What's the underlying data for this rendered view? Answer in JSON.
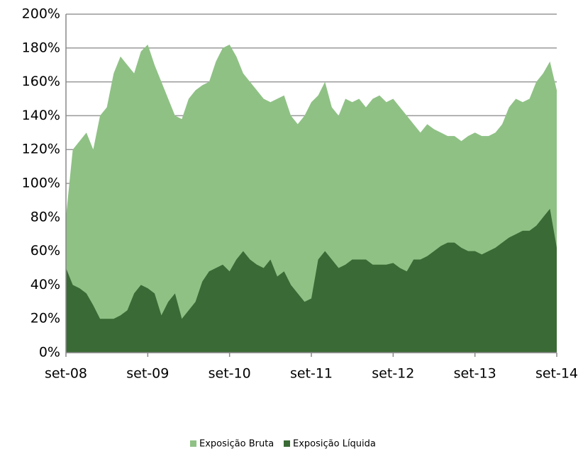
{
  "chart_data": {
    "type": "area",
    "categories": [
      "set-08",
      null,
      null,
      null,
      null,
      null,
      null,
      null,
      null,
      null,
      null,
      null,
      "set-09",
      null,
      null,
      null,
      null,
      null,
      null,
      null,
      null,
      null,
      null,
      null,
      "set-10",
      null,
      null,
      null,
      null,
      null,
      null,
      null,
      null,
      null,
      null,
      null,
      "set-11",
      null,
      null,
      null,
      null,
      null,
      null,
      null,
      null,
      null,
      null,
      null,
      "set-12",
      null,
      null,
      null,
      null,
      null,
      null,
      null,
      null,
      null,
      null,
      null,
      "set-13",
      null,
      null,
      null,
      null,
      null,
      null,
      null,
      null,
      null,
      null,
      null,
      "set-14"
    ],
    "series": [
      {
        "name": "Exposição Bruta",
        "color": "#8fc185",
        "values": [
          80,
          120,
          125,
          130,
          120,
          140,
          145,
          165,
          175,
          170,
          165,
          178,
          182,
          170,
          160,
          150,
          140,
          138,
          150,
          155,
          158,
          160,
          172,
          180,
          182,
          175,
          165,
          160,
          155,
          150,
          148,
          150,
          152,
          140,
          135,
          140,
          148,
          152,
          160,
          145,
          140,
          150,
          148,
          150,
          145,
          150,
          152,
          148,
          150,
          145,
          140,
          135,
          130,
          135,
          132,
          130,
          128,
          128,
          125,
          128,
          130,
          128,
          128,
          130,
          135,
          145,
          150,
          148,
          150,
          160,
          165,
          172,
          155
        ]
      },
      {
        "name": "Exposição Líquida",
        "color": "#3a6a35",
        "values": [
          50,
          40,
          38,
          35,
          28,
          20,
          20,
          20,
          22,
          25,
          35,
          40,
          38,
          35,
          22,
          30,
          35,
          20,
          25,
          30,
          42,
          48,
          50,
          52,
          48,
          55,
          60,
          55,
          52,
          50,
          55,
          45,
          48,
          40,
          35,
          30,
          32,
          55,
          60,
          55,
          50,
          52,
          55,
          55,
          55,
          52,
          52,
          52,
          53,
          50,
          48,
          55,
          55,
          57,
          60,
          63,
          65,
          65,
          62,
          60,
          60,
          58,
          60,
          62,
          65,
          68,
          70,
          72,
          72,
          75,
          80,
          85,
          62
        ]
      }
    ],
    "ylim": [
      0,
      200
    ],
    "yticks": [
      {
        "value": 0,
        "label": "0%"
      },
      {
        "value": 20,
        "label": "20%"
      },
      {
        "value": 40,
        "label": "40%"
      },
      {
        "value": 60,
        "label": "60%"
      },
      {
        "value": 80,
        "label": "80%"
      },
      {
        "value": 100,
        "label": "100%"
      },
      {
        "value": 120,
        "label": "120%"
      },
      {
        "value": 140,
        "label": "140%"
      },
      {
        "value": 160,
        "label": "160%"
      },
      {
        "value": 180,
        "label": "180%"
      },
      {
        "value": 200,
        "label": "200%"
      }
    ],
    "grid": true
  }
}
